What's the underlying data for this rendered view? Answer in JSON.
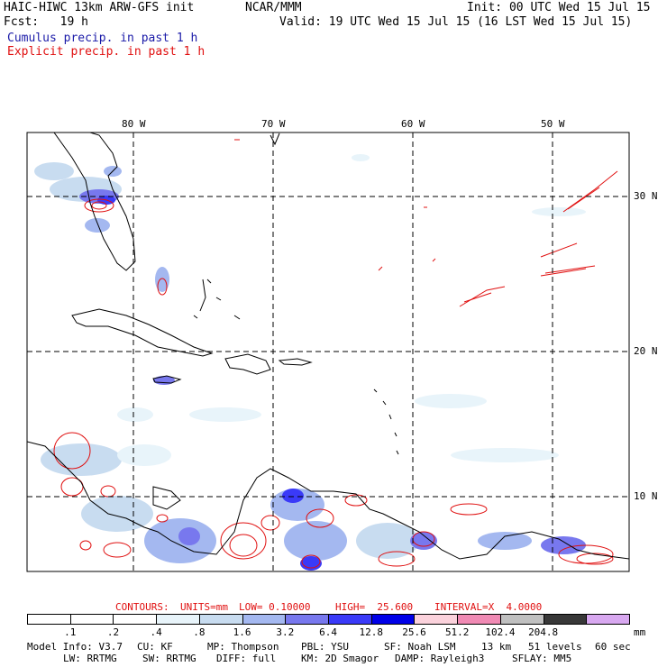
{
  "header": {
    "model": "HAIC-HIWC 13km ARW-GFS init",
    "org": "NCAR/MMM",
    "init": "Init: 00 UTC Wed 15 Jul 15",
    "fcst": "Fcst:   19 h",
    "valid": "Valid: 19 UTC Wed 15 Jul 15 (16 LST Wed 15 Jul 15)",
    "cumulus": "Cumulus precip. in past 1 h",
    "explicit": "Explicit precip. in past 1 h"
  },
  "map": {
    "lon_labels": [
      "80 W",
      "70 W",
      "60 W",
      "50 W"
    ],
    "lat_labels": [
      "30 N",
      "20 N",
      "10 N"
    ]
  },
  "contours": {
    "label": "CONTOURS:",
    "units": "UNITS=mm",
    "low": "LOW= 0.10000",
    "high": "HIGH=  25.600",
    "interval": "INTERVAL=X  4.0000"
  },
  "legend": {
    "unit": "mm",
    "labels": [
      ".1",
      ".2",
      ".4",
      ".8",
      "1.6",
      "3.2",
      "6.4",
      "12.8",
      "25.6",
      "51.2",
      "102.4",
      "204.8"
    ],
    "colors": [
      "#ffffff",
      "#ffffff",
      "#ffffff",
      "#e8f4fa",
      "#c8dcf0",
      "#a4b8f0",
      "#7878ee",
      "#3a3af8",
      "#0000e8",
      "#fbd2dc",
      "#f08ab4",
      "#c0c0c0",
      "#383838",
      "#d8a8f0"
    ]
  },
  "footer": {
    "line1": [
      "Model Info: V3.7",
      "CU: KF",
      "MP: Thompson",
      "PBL: YSU",
      "SF: Noah LSM",
      "13 km",
      "51 levels",
      "60 sec"
    ],
    "line2": [
      "LW: RRTMG",
      "SW: RRTMG",
      "DIFF: full",
      "KM: 2D Smagor",
      "DAMP: Rayleigh3",
      "SFLAY: MM5"
    ]
  }
}
